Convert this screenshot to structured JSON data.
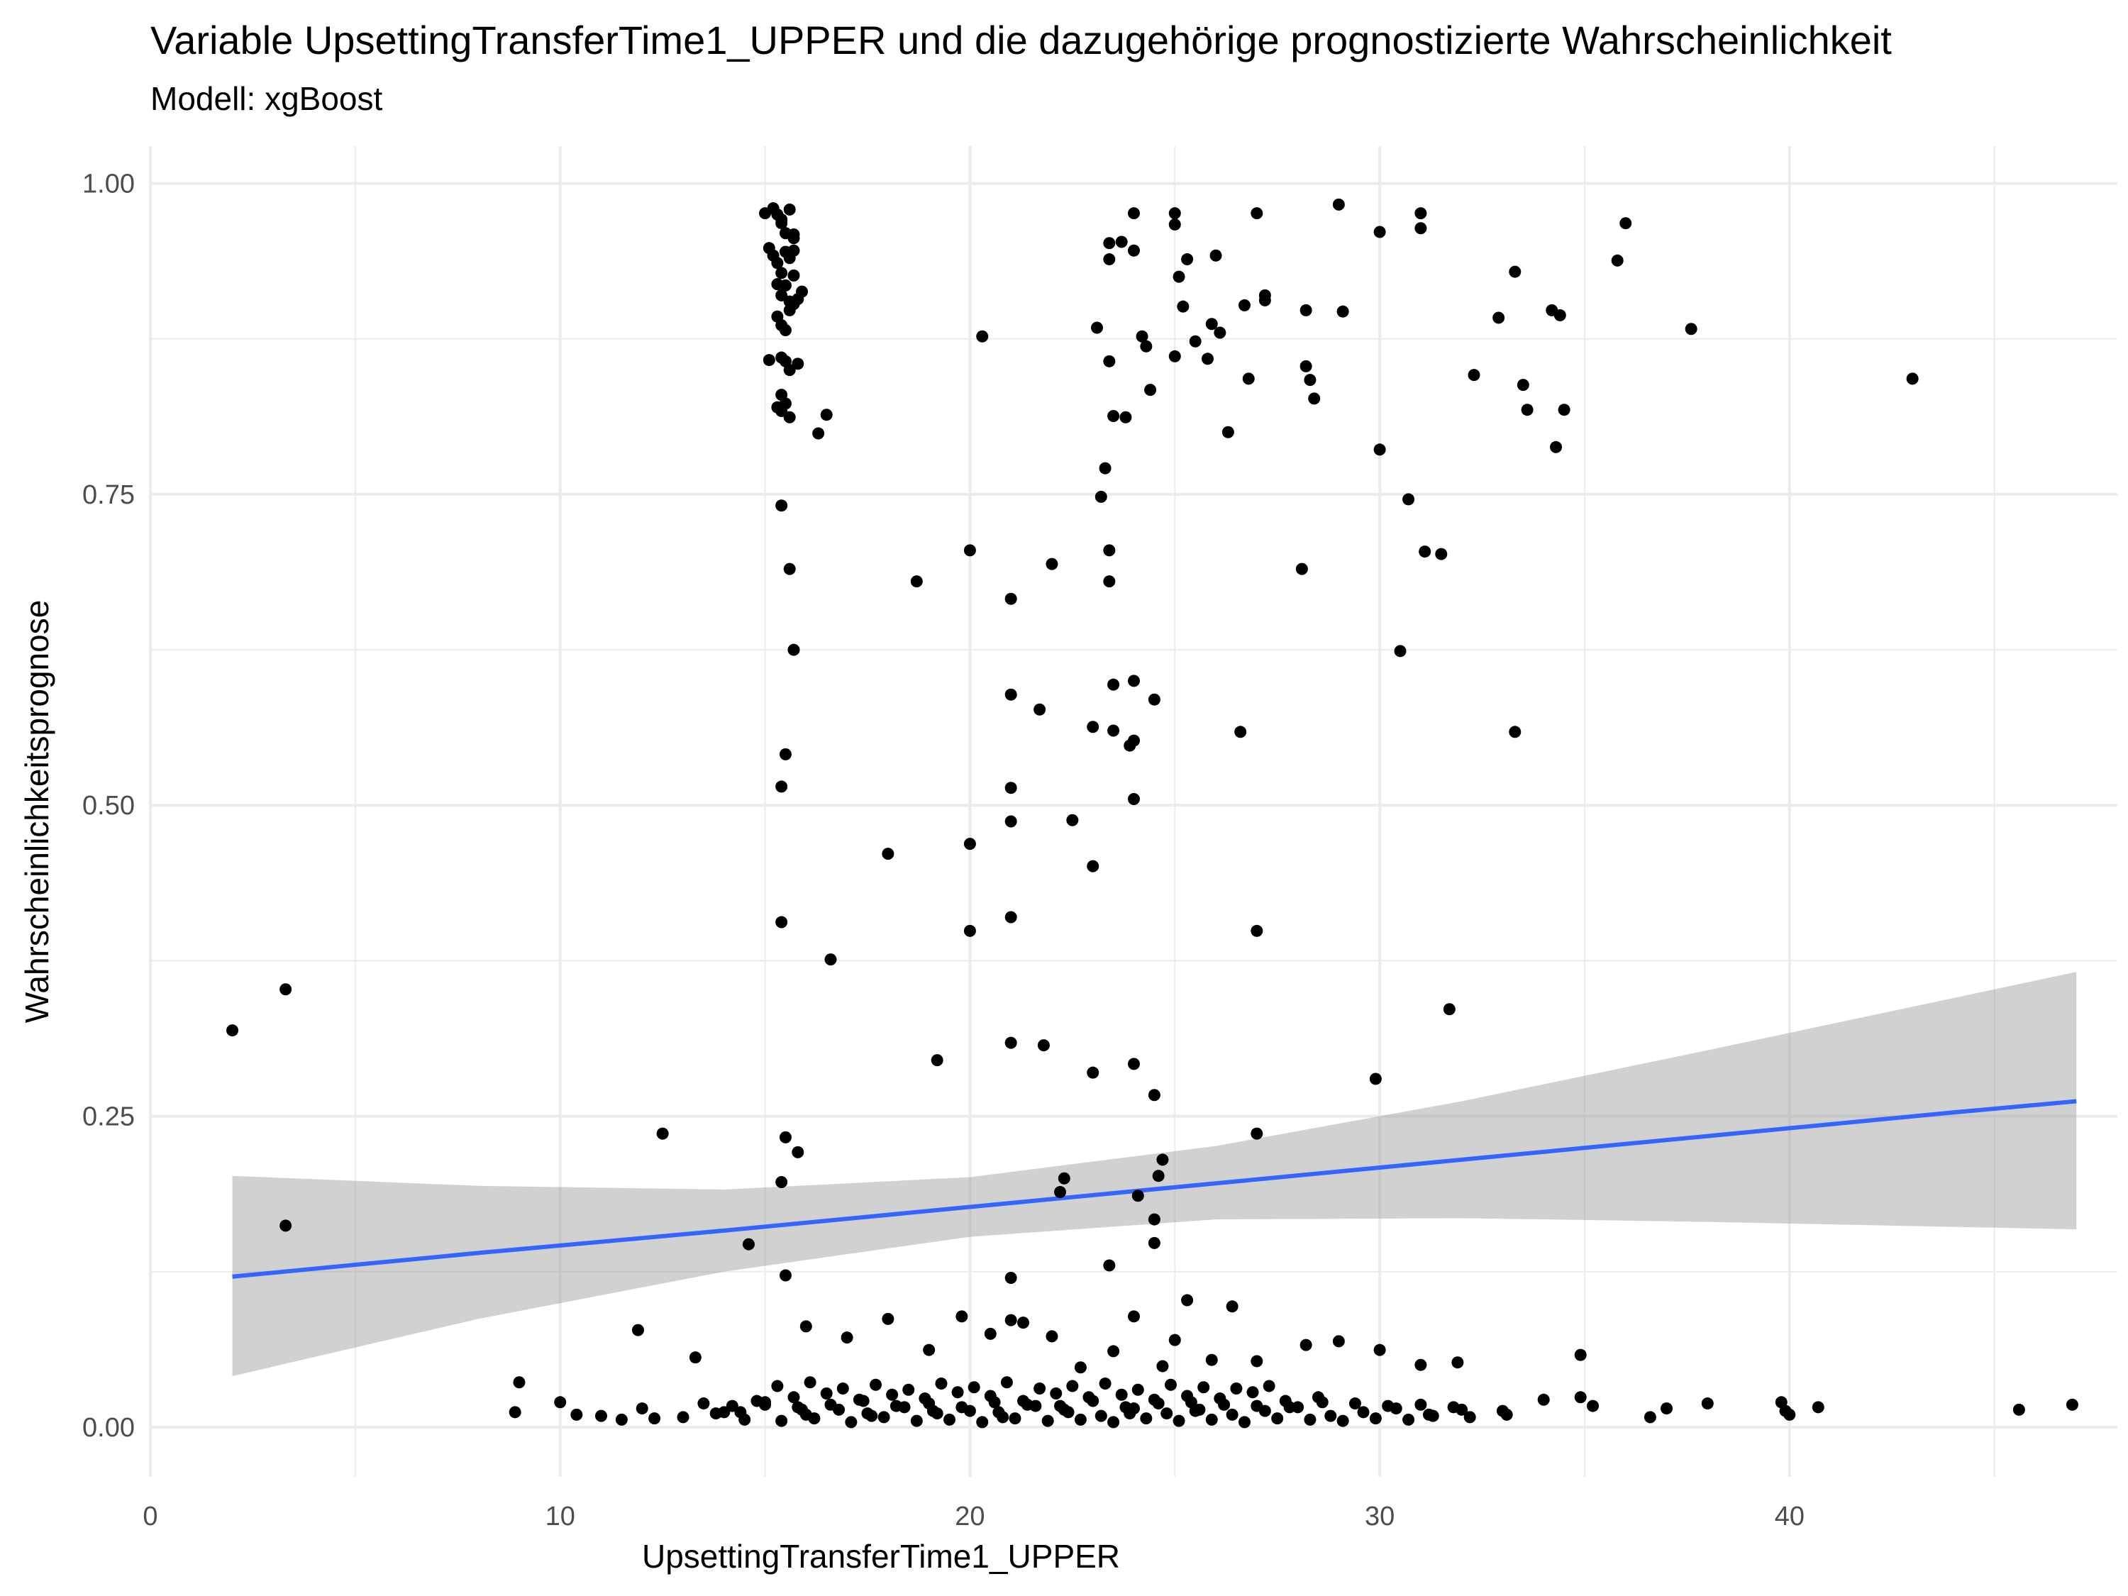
{
  "chart_data": {
    "type": "scatter",
    "title": "Variable UpsettingTransferTime1_UPPER und die dazugehörige prognostizierte Wahrscheinlichkeit",
    "subtitle": "Modell: xgBoost",
    "xlabel": "UpsettingTransferTime1_UPPER",
    "ylabel": "Wahrscheinlichkeitsprognose",
    "xlim": [
      0,
      48
    ],
    "ylim": [
      -0.04,
      1.03
    ],
    "x_ticks": [
      0,
      10,
      20,
      30,
      40
    ],
    "x_tick_labels": [
      "0",
      "10",
      "20",
      "30",
      "40"
    ],
    "y_ticks": [
      0,
      0.25,
      0.5,
      0.75,
      1
    ],
    "y_tick_labels": [
      "0.00",
      "0.25",
      "0.50",
      "0.75",
      "1.00"
    ],
    "grid": true,
    "legend": "none",
    "colors": {
      "points": "#000000",
      "trend_line": "#3366FF",
      "confidence_band": "#999999",
      "grid": "#EBEBEB"
    },
    "trend": {
      "method": "linear",
      "x": [
        2.0,
        8.0,
        14.0,
        20.0,
        26.0,
        32.0,
        38.0,
        44.0,
        47.0
      ],
      "y": [
        0.121,
        0.14,
        0.158,
        0.177,
        0.196,
        0.215,
        0.234,
        0.253,
        0.262
      ],
      "lower": [
        0.041,
        0.087,
        0.125,
        0.153,
        0.167,
        0.168,
        0.165,
        0.161,
        0.159
      ],
      "upper": [
        0.202,
        0.194,
        0.191,
        0.201,
        0.226,
        0.262,
        0.303,
        0.345,
        0.366
      ]
    },
    "series": [
      {
        "x": [
          2.0,
          3.3,
          3.3,
          12.5,
          14.6,
          15.0,
          15.1,
          15.2,
          15.3,
          15.4,
          15.5,
          15.6,
          15.2,
          15.3,
          15.4,
          15.5,
          15.6,
          15.3,
          15.4,
          15.5,
          15.6,
          15.7,
          15.3,
          15.4,
          15.5,
          15.6,
          15.8,
          15.4,
          15.5,
          15.6,
          15.8,
          15.3,
          15.4,
          15.6,
          15.7,
          15.4,
          15.6,
          15.1,
          15.4,
          15.7,
          15.4,
          15.5,
          16.5,
          15.5,
          16.3,
          15.5,
          15.4,
          15.8,
          15.7,
          15.4,
          15.5,
          16.6,
          15.7,
          15.9,
          15.7,
          15.4,
          18.0,
          18.7,
          19.2,
          20.0,
          20.0,
          20.0,
          20.3,
          21.0,
          21.0,
          21.0,
          21.0,
          21.0,
          21.0,
          21.0,
          21.7,
          22.0,
          21.8,
          22.5,
          22.2,
          22.3,
          23.0,
          23.0,
          23.0,
          23.1,
          23.2,
          23.3,
          23.4,
          23.4,
          23.5,
          23.4,
          23.4,
          23.4,
          23.5,
          23.5,
          23.7,
          23.8,
          24.0,
          24.0,
          23.9,
          24.0,
          24.0,
          24.0,
          24.2,
          24.3,
          24.4,
          24.5,
          24.5,
          24.6,
          24.7,
          24.0,
          24.1,
          24.5,
          24.5,
          23.4,
          25.0,
          25.0,
          25.1,
          25.2,
          25.3,
          25.0,
          25.5,
          25.8,
          25.9,
          26.1,
          26.0,
          26.3,
          26.7,
          26.8,
          26.6,
          27.0,
          27.2,
          27.2,
          27.0,
          27.0,
          28.3,
          28.1,
          28.2,
          28.4,
          28.2,
          29.0,
          29.1,
          30.0,
          30.0,
          29.9,
          30.5,
          30.7,
          31.0,
          31.0,
          31.1,
          31.5,
          31.7,
          32.3,
          32.9,
          33.3,
          33.3,
          33.5,
          33.6,
          34.2,
          34.4,
          34.5,
          34.3,
          35.8,
          36.0,
          37.6,
          43.0,
          9.0,
          10.0,
          11.9,
          13.3,
          16.0,
          17.0,
          18.0,
          19.0,
          19.8,
          20.5,
          21.0,
          21.3,
          22.0,
          22.7,
          23.5,
          24.0,
          24.7,
          25.0,
          25.3,
          25.9,
          26.4,
          27.0,
          28.2,
          29.0,
          30.0,
          31.0,
          31.9,
          34.9,
          8.9,
          10.4,
          12.0,
          13.0,
          14.0,
          15.0,
          16.0,
          16.8,
          17.6,
          18.4,
          19.2,
          20.0,
          20.8,
          21.6,
          22.4,
          23.2,
          24.0,
          24.8,
          25.6,
          26.4,
          27.2,
          28.0,
          28.8,
          29.6,
          30.4,
          31.2,
          32.0,
          33.0,
          34.0,
          35.2,
          36.6,
          37.0,
          38.0,
          39.8,
          40.0,
          40.7,
          45.6,
          46.9,
          34.9,
          39.9,
          11.0,
          11.5,
          12.3,
          13.8,
          14.5,
          15.4,
          16.2,
          17.1,
          17.9,
          18.7,
          19.5,
          20.3,
          21.1,
          21.9,
          22.7,
          23.5,
          24.3,
          25.1,
          25.9,
          26.7,
          27.5,
          28.3,
          29.1,
          29.9,
          30.7,
          31.3,
          32.2,
          33.1,
          14.8,
          15.7,
          16.5,
          17.3,
          18.1,
          18.9,
          19.7,
          20.5,
          21.3,
          22.1,
          22.9,
          23.7,
          24.5,
          25.3,
          26.1,
          26.9,
          27.7,
          28.5,
          13.5,
          14.2,
          15.0,
          15.8,
          16.6,
          17.4,
          18.2,
          19.0,
          19.8,
          20.6,
          21.4,
          22.2,
          23.0,
          23.8,
          24.6,
          25.4,
          26.2,
          27.0,
          27.8,
          28.6,
          29.4,
          30.2,
          31.0,
          31.8,
          15.3,
          16.1,
          16.9,
          17.7,
          18.5,
          19.3,
          20.1,
          20.9,
          21.7,
          22.5,
          23.3,
          24.1,
          24.9,
          25.7,
          26.5,
          27.3,
          14.4,
          15.9,
          17.5,
          19.1,
          20.7,
          22.3,
          23.9,
          25.5
        ],
        "y": [
          0.319,
          0.352,
          0.162,
          0.236,
          0.147,
          0.976,
          0.948,
          0.98,
          0.975,
          0.968,
          0.96,
          0.979,
          0.942,
          0.936,
          0.928,
          0.945,
          0.94,
          0.919,
          0.91,
          0.918,
          0.905,
          0.926,
          0.893,
          0.886,
          0.882,
          0.898,
          0.907,
          0.86,
          0.857,
          0.85,
          0.855,
          0.82,
          0.817,
          0.812,
          0.903,
          0.741,
          0.69,
          0.858,
          0.515,
          0.625,
          0.406,
          0.122,
          0.814,
          0.233,
          0.799,
          0.541,
          0.197,
          0.221,
          0.959,
          0.83,
          0.823,
          0.376,
          0.946,
          0.913,
          0.956,
          0.971,
          0.461,
          0.68,
          0.295,
          0.705,
          0.469,
          0.399,
          0.877,
          0.666,
          0.589,
          0.514,
          0.487,
          0.41,
          0.309,
          0.12,
          0.577,
          0.694,
          0.307,
          0.488,
          0.189,
          0.2,
          0.563,
          0.451,
          0.285,
          0.884,
          0.748,
          0.771,
          0.705,
          0.68,
          0.813,
          0.939,
          0.952,
          0.857,
          0.597,
          0.56,
          0.953,
          0.812,
          0.976,
          0.946,
          0.548,
          0.552,
          0.6,
          0.505,
          0.877,
          0.869,
          0.834,
          0.585,
          0.267,
          0.202,
          0.215,
          0.292,
          0.186,
          0.167,
          0.148,
          0.13,
          0.976,
          0.967,
          0.925,
          0.901,
          0.939,
          0.861,
          0.873,
          0.859,
          0.887,
          0.88,
          0.942,
          0.8,
          0.902,
          0.843,
          0.559,
          0.976,
          0.906,
          0.91,
          0.236,
          0.399,
          0.842,
          0.69,
          0.853,
          0.827,
          0.898,
          0.983,
          0.897,
          0.961,
          0.786,
          0.28,
          0.624,
          0.746,
          0.976,
          0.964,
          0.704,
          0.702,
          0.336,
          0.846,
          0.892,
          0.929,
          0.559,
          0.838,
          0.818,
          0.898,
          0.894,
          0.818,
          0.788,
          0.938,
          0.968,
          0.883,
          0.843,
          0.036,
          0.02,
          0.078,
          0.056,
          0.081,
          0.072,
          0.087,
          0.062,
          0.089,
          0.075,
          0.086,
          0.084,
          0.073,
          0.048,
          0.061,
          0.089,
          0.049,
          0.07,
          0.102,
          0.054,
          0.097,
          0.053,
          0.066,
          0.069,
          0.062,
          0.05,
          0.052,
          0.058,
          0.012,
          0.01,
          0.015,
          0.008,
          0.012,
          0.018,
          0.01,
          0.014,
          0.009,
          0.016,
          0.011,
          0.013,
          0.008,
          0.017,
          0.012,
          0.009,
          0.015,
          0.011,
          0.014,
          0.01,
          0.013,
          0.016,
          0.009,
          0.012,
          0.015,
          0.01,
          0.014,
          0.013,
          0.022,
          0.017,
          0.008,
          0.015,
          0.019,
          0.02,
          0.01,
          0.016,
          0.014,
          0.018,
          0.024,
          0.013,
          0.009,
          0.006,
          0.007,
          0.011,
          0.006,
          0.005,
          0.007,
          0.004,
          0.008,
          0.005,
          0.006,
          0.004,
          0.007,
          0.005,
          0.006,
          0.004,
          0.007,
          0.005,
          0.006,
          0.004,
          0.007,
          0.006,
          0.005,
          0.007,
          0.006,
          0.009,
          0.008,
          0.01,
          0.021,
          0.024,
          0.027,
          0.022,
          0.026,
          0.023,
          0.028,
          0.025,
          0.021,
          0.027,
          0.024,
          0.026,
          0.022,
          0.025,
          0.023,
          0.028,
          0.021,
          0.024,
          0.019,
          0.017,
          0.02,
          0.016,
          0.018,
          0.021,
          0.017,
          0.019,
          0.016,
          0.02,
          0.018,
          0.017,
          0.021,
          0.016,
          0.019,
          0.02,
          0.018,
          0.017,
          0.016,
          0.02,
          0.019,
          0.017,
          0.018,
          0.016,
          0.033,
          0.036,
          0.031,
          0.034,
          0.03,
          0.035,
          0.032,
          0.036,
          0.031,
          0.033,
          0.035,
          0.03,
          0.034,
          0.032,
          0.031,
          0.033,
          0.012,
          0.014,
          0.011,
          0.013,
          0.012,
          0.014,
          0.011,
          0.013
        ]
      }
    ]
  }
}
